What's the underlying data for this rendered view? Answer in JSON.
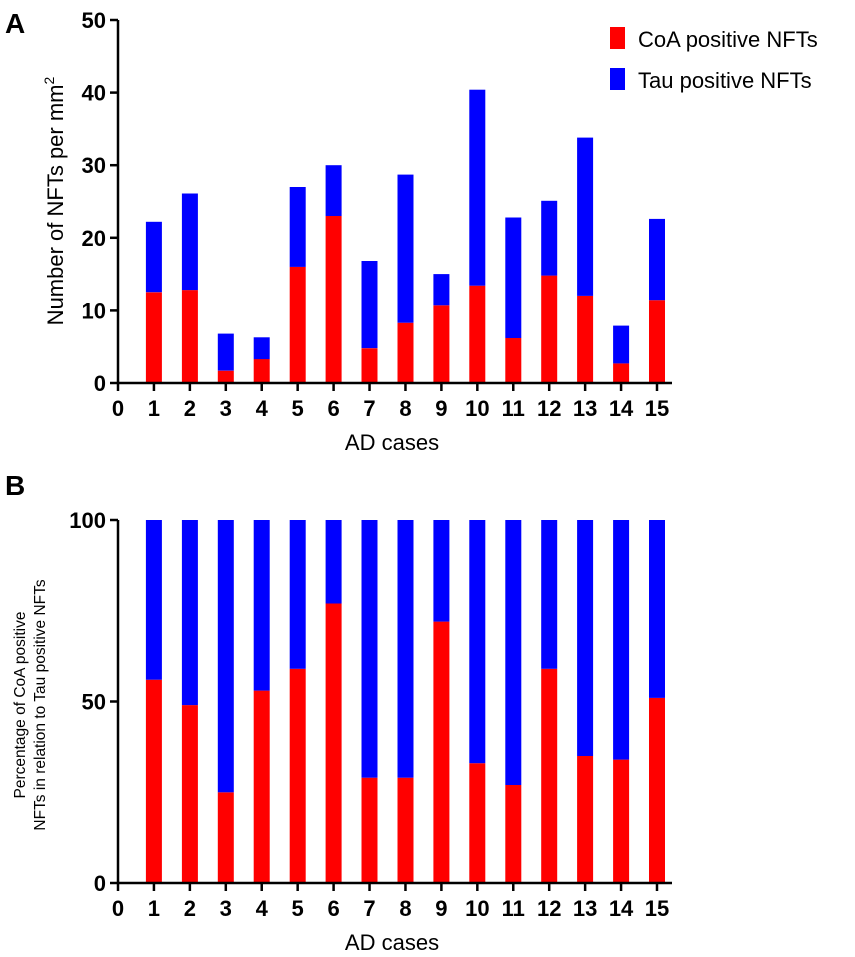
{
  "panels": [
    {
      "label": "A"
    },
    {
      "label": "B"
    }
  ],
  "legend": {
    "placement": "top-right",
    "items": [
      {
        "label": "CoA positive NFTs",
        "color": "#ff0000"
      },
      {
        "label": "Tau positive NFTs",
        "color": "#0000ff"
      }
    ]
  },
  "chart_data": [
    {
      "type": "bar",
      "stacked": true,
      "title": "",
      "xlabel": "AD cases",
      "ylabel_main": "Number of NFTs per mm",
      "ylabel_sup": "2",
      "x_ticks": [
        "0",
        "1",
        "2",
        "3",
        "4",
        "5",
        "6",
        "7",
        "8",
        "9",
        "10",
        "11",
        "12",
        "13",
        "14",
        "15"
      ],
      "y_ticks": [
        "0",
        "10",
        "20",
        "30",
        "40",
        "50"
      ],
      "xlim": [
        0,
        15
      ],
      "ylim": [
        0,
        50
      ],
      "categories": [
        "1",
        "2",
        "3",
        "4",
        "5",
        "6",
        "7",
        "8",
        "9",
        "10",
        "11",
        "12",
        "13",
        "14",
        "15"
      ],
      "series": [
        {
          "name": "CoA positive NFTs",
          "color": "#ff0000",
          "values": [
            12.5,
            12.8,
            1.7,
            3.3,
            16,
            23,
            4.8,
            8.3,
            10.7,
            13.4,
            6.2,
            14.8,
            12,
            2.7,
            11.4
          ]
        },
        {
          "name": "Tau positive NFTs",
          "color": "#0000ff",
          "values": [
            9.7,
            13.3,
            5.1,
            3.0,
            11,
            7,
            12.0,
            20.4,
            4.3,
            27.0,
            16.6,
            10.3,
            21.8,
            5.2,
            11.2
          ]
        }
      ]
    },
    {
      "type": "bar",
      "stacked": true,
      "title": "",
      "xlabel": "AD cases",
      "ylabel_line1": "Percentage of CoA positive",
      "ylabel_line2": "NFTs in relation to Tau positive NFTs",
      "x_ticks": [
        "0",
        "1",
        "2",
        "3",
        "4",
        "5",
        "6",
        "7",
        "8",
        "9",
        "10",
        "11",
        "12",
        "13",
        "14",
        "15"
      ],
      "y_ticks": [
        "0",
        "50",
        "100"
      ],
      "xlim": [
        0,
        15
      ],
      "ylim": [
        0,
        100
      ],
      "categories": [
        "1",
        "2",
        "3",
        "4",
        "5",
        "6",
        "7",
        "8",
        "9",
        "10",
        "11",
        "12",
        "13",
        "14",
        "15"
      ],
      "series": [
        {
          "name": "CoA positive NFTs",
          "color": "#ff0000",
          "values": [
            56,
            49,
            25,
            53,
            59,
            77,
            29,
            29,
            72,
            33,
            27,
            59,
            35,
            34,
            51
          ]
        },
        {
          "name": "Tau positive NFTs",
          "color": "#0000ff",
          "values": [
            44,
            51,
            75,
            47,
            41,
            23,
            71,
            71,
            28,
            67,
            73,
            41,
            65,
            66,
            49
          ]
        }
      ]
    }
  ]
}
